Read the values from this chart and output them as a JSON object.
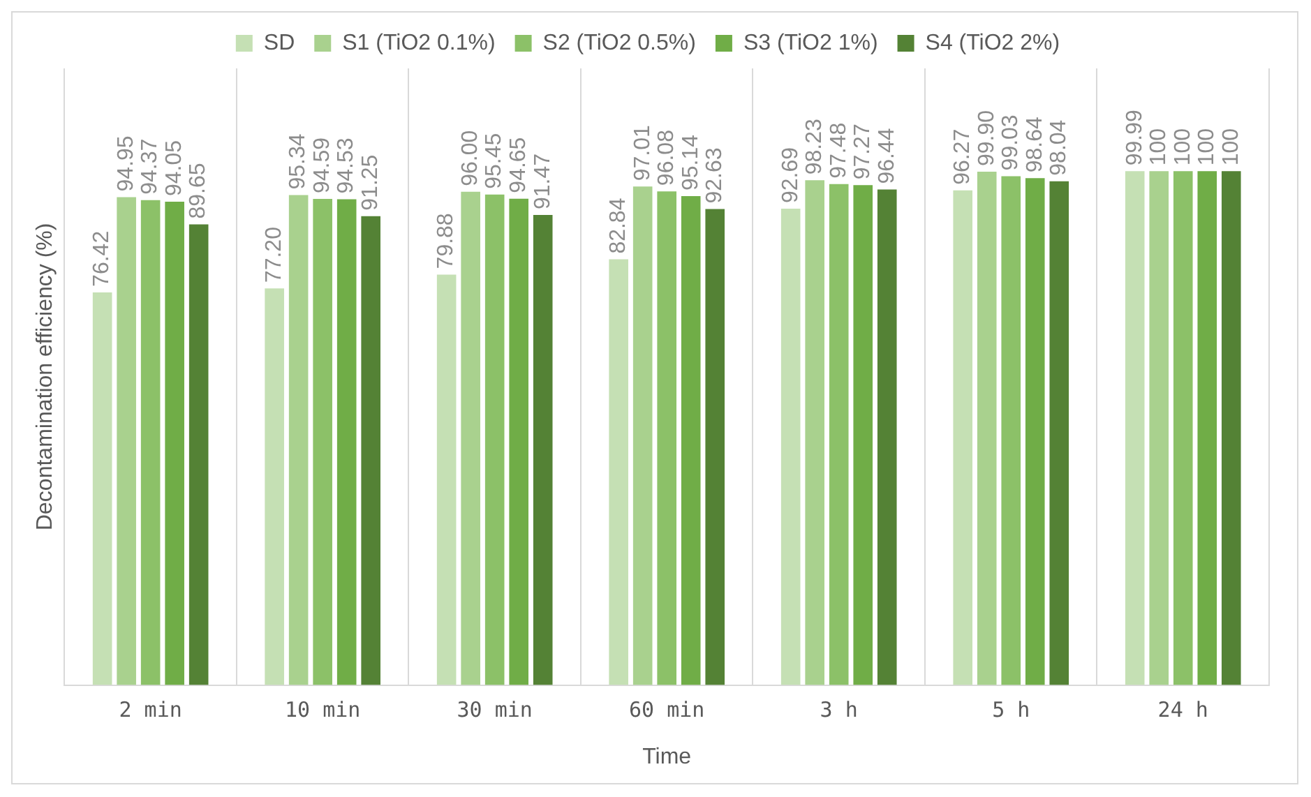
{
  "chart_data": {
    "type": "bar",
    "xlabel": "Time",
    "ylabel": "Decontamination efficiency (%)",
    "categories": [
      "2 min",
      "10 min",
      "30 min",
      "60 min",
      "3 h",
      "5 h",
      "24 h"
    ],
    "series": [
      {
        "name": "SD",
        "color": "#c5e0b4",
        "values": [
          76.42,
          77.2,
          79.88,
          82.84,
          92.69,
          96.27,
          99.99
        ],
        "value_labels": [
          "76.42",
          "77.20",
          "79.88",
          "82.84",
          "92.69",
          "96.27",
          "99.99"
        ]
      },
      {
        "name": "S1 (TiO2 0.1%)",
        "color": "#a9d18e",
        "values": [
          94.95,
          95.34,
          96.0,
          97.01,
          98.23,
          99.9,
          100
        ],
        "value_labels": [
          "94.95",
          "95.34",
          "96.00",
          "97.01",
          "98.23",
          "99.90",
          "100"
        ]
      },
      {
        "name": "S2 (TiO2 0.5%)",
        "color": "#8cc168",
        "values": [
          94.37,
          94.59,
          95.45,
          96.08,
          97.48,
          99.03,
          100
        ],
        "value_labels": [
          "94.37",
          "94.59",
          "95.45",
          "96.08",
          "97.48",
          "99.03",
          "100"
        ]
      },
      {
        "name": "S3 (TiO2 1%)",
        "color": "#70ad47",
        "values": [
          94.05,
          94.53,
          94.65,
          95.14,
          97.27,
          98.64,
          100
        ],
        "value_labels": [
          "94.05",
          "94.53",
          "94.65",
          "95.14",
          "97.27",
          "98.64",
          "100"
        ]
      },
      {
        "name": "S4 (TiO2 2%)",
        "color": "#548235",
        "values": [
          89.65,
          91.25,
          91.47,
          92.63,
          96.44,
          98.04,
          100
        ],
        "value_labels": [
          "89.65",
          "91.25",
          "91.47",
          "92.63",
          "96.44",
          "98.04",
          "100"
        ]
      }
    ],
    "grid": "x",
    "legend": "top",
    "tick_labels": "x"
  }
}
